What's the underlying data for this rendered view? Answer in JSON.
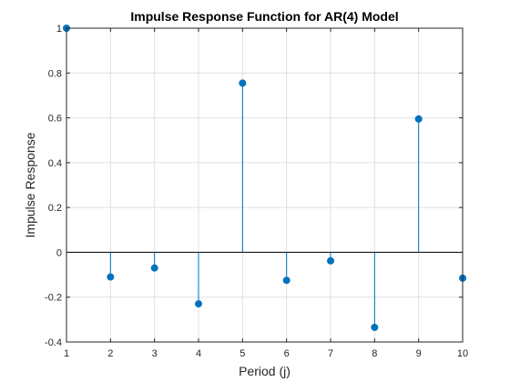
{
  "chart_data": {
    "type": "stem",
    "title": "Impulse Response Function for AR(4) Model",
    "xlabel": "Period (j)",
    "ylabel": "Impulse Response",
    "x": [
      1,
      2,
      3,
      4,
      5,
      6,
      7,
      8,
      9,
      10
    ],
    "y": [
      1.0,
      -0.11,
      -0.07,
      -0.23,
      0.755,
      -0.125,
      -0.038,
      -0.335,
      0.595,
      -0.115
    ],
    "xlim": [
      1,
      10
    ],
    "ylim": [
      -0.4,
      1.0
    ],
    "xticks": [
      "1",
      "2",
      "3",
      "4",
      "5",
      "6",
      "7",
      "8",
      "9",
      "10"
    ],
    "yticks": [
      "-0.4",
      "-0.2",
      "0",
      "0.2",
      "0.4",
      "0.6",
      "0.8",
      "1"
    ],
    "grid": true,
    "baseline": 0,
    "colors": {
      "series": "#0072BD",
      "axis": "#262626",
      "grid": "#e0e0e0",
      "baseline": "#000000"
    }
  }
}
